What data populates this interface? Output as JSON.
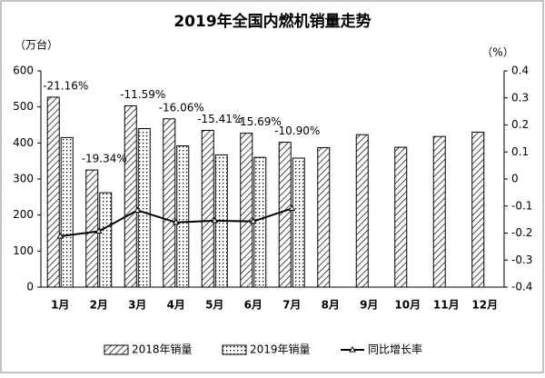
{
  "chart_data": {
    "type": "bar",
    "title": "2019年全国内燃机销量走势",
    "y_label": "（万台）",
    "y2_label": "（%）",
    "categories": [
      "1月",
      "2月",
      "3月",
      "4月",
      "5月",
      "6月",
      "7月",
      "8月",
      "9月",
      "10月",
      "11月",
      "12月"
    ],
    "series": [
      {
        "name": "2018年销量",
        "color": "#000000",
        "values": [
          527,
          325,
          503,
          467,
          435,
          427,
          402,
          387,
          423,
          388,
          418,
          430
        ]
      },
      {
        "name": "2019年销量",
        "color": "#000000",
        "values": [
          415,
          262,
          440,
          392,
          367,
          360,
          358,
          null,
          null,
          null,
          null,
          null
        ]
      },
      {
        "name": "同比增长率",
        "color": "#000000",
        "type": "line",
        "axis": "y2",
        "values": [
          -0.2116,
          -0.1934,
          -0.1159,
          -0.1606,
          -0.1541,
          -0.1569,
          -0.109,
          null,
          null,
          null,
          null,
          null
        ],
        "value_labels": [
          "-21.16%",
          "-19.34%",
          "-11.59%",
          "-16.06%",
          "-15.41%",
          "-15.69%",
          "-10.90%",
          null,
          null,
          null,
          null,
          null
        ]
      }
    ],
    "ylim": [
      0,
      600
    ],
    "yticks": [
      0,
      100,
      200,
      300,
      400,
      500,
      600
    ],
    "y2lim": [
      -0.4,
      0.4
    ],
    "y2ticks": [
      -0.4,
      -0.3,
      -0.2,
      -0.1,
      0,
      0.1,
      0.2,
      0.3,
      0.4
    ],
    "grid": false,
    "legend": "bottom"
  }
}
